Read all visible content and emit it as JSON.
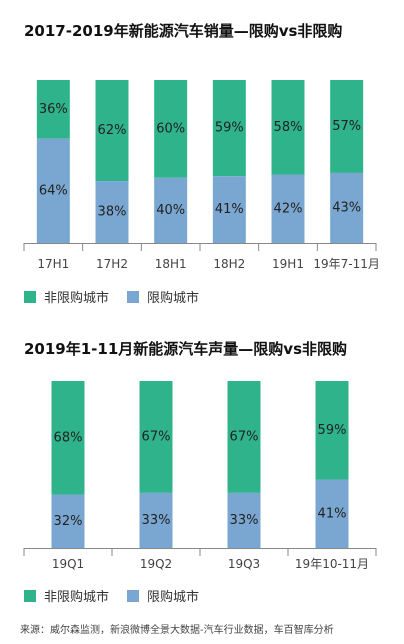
{
  "colors": {
    "non_restricted": "#2fb38a",
    "restricted": "#7aa7d1",
    "axis": "#888888"
  },
  "legend": {
    "non_restricted": "非限购城市",
    "restricted": "限购城市"
  },
  "source": "来源：威尔森监测，新浪微博全景大数据-汽车行业数据，车百智库分析",
  "chart_data": [
    {
      "type": "bar",
      "title": "2017-2019年新能源汽车销量—限购vs非限购",
      "categories": [
        "17H1",
        "17H2",
        "18H1",
        "18H2",
        "19H1",
        "19年7-11月"
      ],
      "series": [
        {
          "name": "非限购城市",
          "values": [
            36,
            62,
            60,
            59,
            58,
            57
          ]
        },
        {
          "name": "限购城市",
          "values": [
            64,
            38,
            40,
            41,
            42,
            43
          ]
        }
      ],
      "ylim": [
        0,
        100
      ]
    },
    {
      "type": "bar",
      "title": "2019年1-11月新能源汽车声量—限购vs非限购",
      "categories": [
        "19Q1",
        "19Q2",
        "19Q3",
        "19年10-11月"
      ],
      "series": [
        {
          "name": "非限购城市",
          "values": [
            68,
            67,
            67,
            59
          ]
        },
        {
          "name": "限购城市",
          "values": [
            32,
            33,
            33,
            41
          ]
        }
      ],
      "ylim": [
        0,
        100
      ]
    }
  ]
}
